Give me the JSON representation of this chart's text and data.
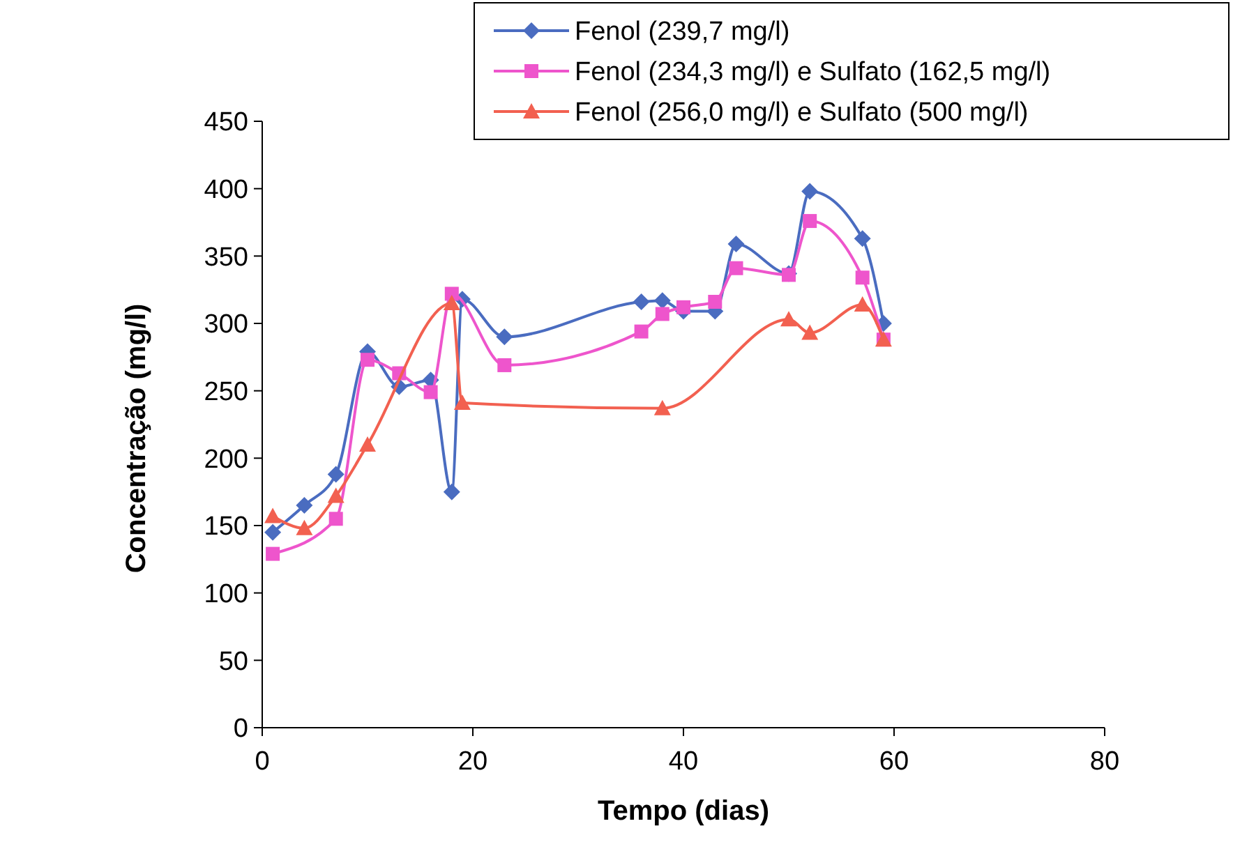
{
  "chart_data": {
    "type": "line",
    "xlabel": "Tempo (dias)",
    "ylabel": "Concentração (mg/l)",
    "xlim": [
      0,
      80
    ],
    "xticks": [
      0,
      20,
      40,
      60,
      80
    ],
    "ylim": [
      0,
      450
    ],
    "yticks": [
      0,
      50,
      100,
      150,
      200,
      250,
      300,
      350,
      400,
      450
    ],
    "legend": "top right",
    "grid": false,
    "line_style": "solid",
    "series": [
      {
        "name": "Fenol (239,7 mg/l)",
        "color": "#4a6cc0",
        "marker": "diamond",
        "x": [
          1,
          4,
          7,
          10,
          13,
          16,
          18,
          19,
          23,
          36,
          38,
          40,
          43,
          45,
          50,
          52,
          57,
          59
        ],
        "values": [
          145,
          165,
          188,
          279,
          253,
          258,
          175,
          318,
          290,
          316,
          317,
          309,
          309,
          359,
          337,
          398,
          363,
          300
        ]
      },
      {
        "name": "Fenol (234,3 mg/l) e Sulfato (162,5 mg/l)",
        "color": "#ee55cc",
        "marker": "square",
        "x": [
          1,
          7,
          10,
          13,
          16,
          18,
          23,
          36,
          38,
          40,
          43,
          45,
          50,
          52,
          57,
          59
        ],
        "values": [
          129,
          155,
          273,
          263,
          249,
          322,
          269,
          294,
          307,
          312,
          316,
          341,
          336,
          376,
          334,
          288
        ]
      },
      {
        "name": "Fenol (256,0 mg/l) e Sulfato (500 mg/l)",
        "color": "#f26050",
        "marker": "triangle",
        "x": [
          1,
          4,
          7,
          10,
          18,
          19,
          38,
          50,
          52,
          57,
          59
        ],
        "values": [
          157,
          148,
          172,
          210,
          315,
          241,
          237,
          303,
          293,
          314,
          288
        ]
      }
    ]
  }
}
